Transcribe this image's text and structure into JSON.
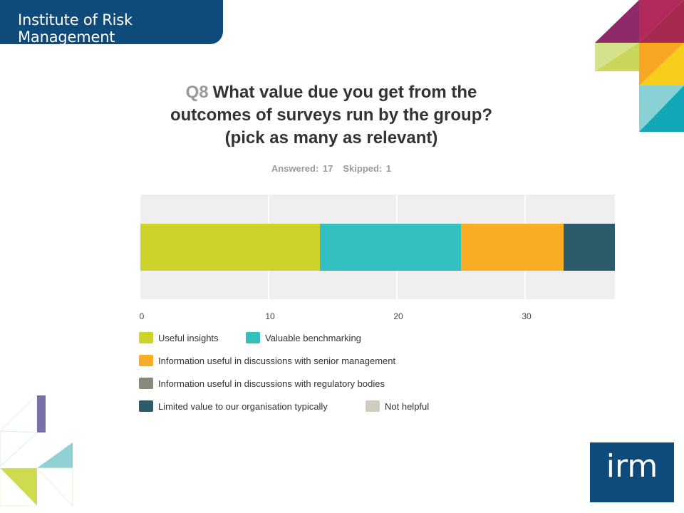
{
  "header": {
    "org_name": "Institute of Risk Management"
  },
  "logo": {
    "text": "irm"
  },
  "chart": {
    "question_number": "Q8",
    "title": "What value due you get from the outcomes of surveys run by the group? (pick as many as relevant)",
    "title_lines": [
      "What value due you get from the",
      "outcomes of surveys run by the group?",
      "(pick as many as relevant)"
    ],
    "answered": "Answered: 17",
    "skipped": "Skipped: 1"
  },
  "chart_data": {
    "type": "bar",
    "orientation": "horizontal-stacked",
    "categories": [
      ""
    ],
    "series": [
      {
        "name": "Useful insights",
        "values": [
          14
        ],
        "color": "#cdd32a"
      },
      {
        "name": "Valuable benchmarking",
        "values": [
          11
        ],
        "color": "#33bec0"
      },
      {
        "name": "Information useful in discussions with senior management",
        "values": [
          8
        ],
        "color": "#f8ad24"
      },
      {
        "name": "Information useful in discussions with regulatory bodies",
        "values": [
          0
        ],
        "color": "#858b78"
      },
      {
        "name": "Limited value to our organisation typically",
        "values": [
          4
        ],
        "color": "#2c5c6a"
      },
      {
        "name": "Not helpful",
        "values": [
          0
        ],
        "color": "#cfccc0"
      }
    ],
    "xlim": [
      0,
      37
    ],
    "xticks": [
      "0",
      "10",
      "20",
      "30"
    ],
    "grid": true,
    "legend_position": "bottom"
  },
  "colors": {
    "brand_blue": "#0e4a7a",
    "plot_background": "#efefef"
  }
}
